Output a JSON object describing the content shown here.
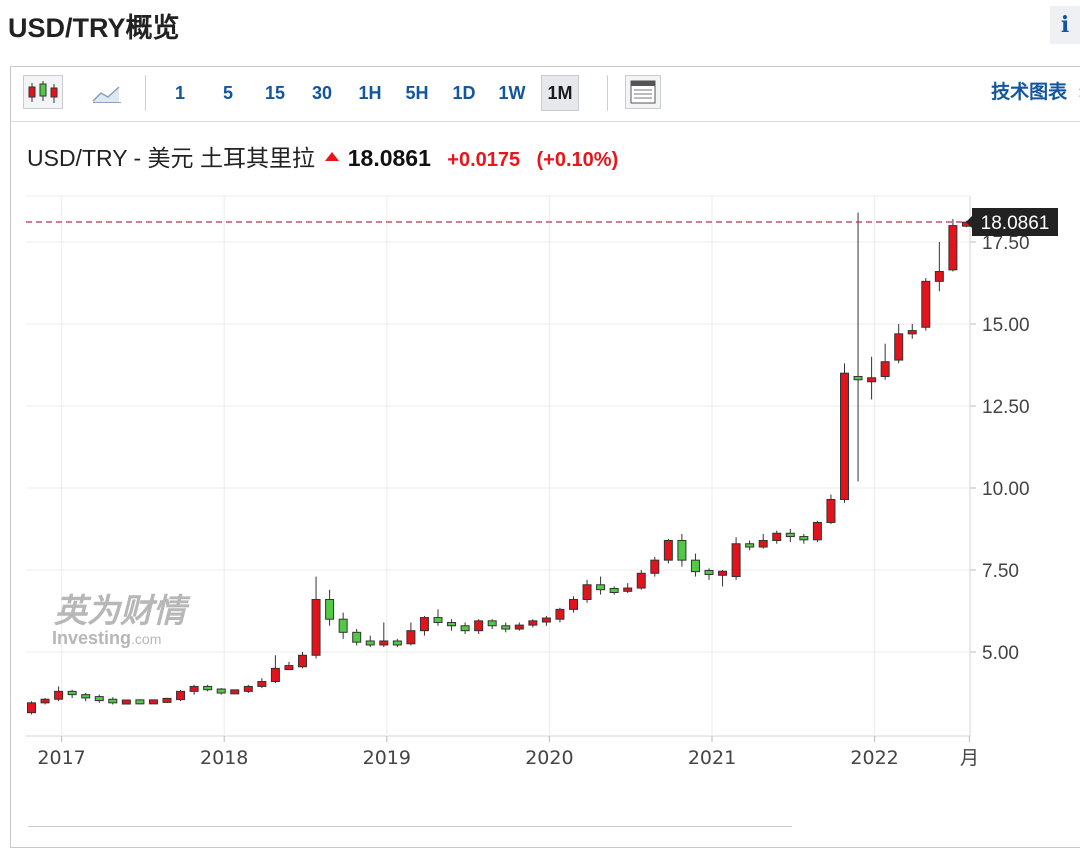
{
  "page": {
    "title": "USD/TRY概览",
    "info_icon": "info-icon",
    "info_label": "i"
  },
  "toolbar": {
    "chart_type_icons": [
      "candlestick-icon",
      "area-chart-icon"
    ],
    "timeframes": [
      "1",
      "5",
      "15",
      "30",
      "1H",
      "5H",
      "1D",
      "1W",
      "1M"
    ],
    "active_timeframe": "1M",
    "table_icon": "data-table-icon",
    "tech_chart_label": "技术图表",
    "tech_chart_arrow": "»"
  },
  "quote": {
    "name": "USD/TRY - 美元 土耳其里拉",
    "direction": "up",
    "price": "18.0861",
    "change": "+0.0175",
    "change_pct": "(+0.10%)",
    "up_color": "#e8151a"
  },
  "watermark": {
    "cn": "英为财情",
    "en": "Investing",
    "suffix": ".com"
  },
  "chart_data": {
    "type": "candlestick",
    "title": "USD/TRY - 美元 土耳其里拉",
    "interval": "1M",
    "xlabel": "",
    "ylabel": "",
    "ylim": [
      2.2,
      19.2
    ],
    "y_ticks": [
      {
        "value": 17.5,
        "label": "17.50"
      },
      {
        "value": 15,
        "label": "15.00"
      },
      {
        "value": 12.5,
        "label": "12.50"
      },
      {
        "value": 10,
        "label": "10.00"
      },
      {
        "value": 7.5,
        "label": "7.50"
      },
      {
        "value": 5,
        "label": "5.00"
      }
    ],
    "x_ticks": [
      {
        "index": 2,
        "label": "2017"
      },
      {
        "index": 14,
        "label": "2018"
      },
      {
        "index": 26,
        "label": "2019"
      },
      {
        "index": 38,
        "label": "2020"
      },
      {
        "index": 50,
        "label": "2021"
      },
      {
        "index": 62,
        "label": "2022"
      },
      {
        "index": 69,
        "label": "月"
      }
    ],
    "last_price": 18.0861,
    "last_price_label": "18.0861",
    "up_color": "#e3131b",
    "down_color": "#52c946",
    "candles": [
      [
        3.15,
        3.45,
        3.1,
        3.5
      ],
      [
        3.45,
        3.56,
        3.4,
        3.6
      ],
      [
        3.56,
        3.8,
        3.5,
        3.95
      ],
      [
        3.8,
        3.7,
        3.6,
        3.85
      ],
      [
        3.7,
        3.6,
        3.5,
        3.75
      ],
      [
        3.6,
        3.56,
        3.45,
        3.7
      ],
      [
        3.56,
        3.45,
        3.4,
        3.62
      ],
      [
        3.45,
        3.5,
        3.4,
        3.55
      ],
      [
        3.5,
        3.46,
        3.4,
        3.56
      ],
      [
        3.46,
        3.5,
        3.42,
        3.55
      ],
      [
        3.5,
        3.55,
        3.45,
        3.6
      ],
      [
        3.55,
        3.8,
        3.5,
        3.85
      ],
      [
        3.8,
        3.95,
        3.7,
        4.0
      ],
      [
        3.95,
        3.85,
        3.8,
        4.0
      ],
      [
        3.85,
        3.77,
        3.7,
        3.9
      ],
      [
        3.77,
        3.8,
        3.72,
        3.85
      ],
      [
        3.8,
        3.95,
        3.75,
        4.0
      ],
      [
        3.95,
        4.1,
        3.9,
        4.2
      ],
      [
        4.1,
        4.5,
        4.05,
        4.9
      ],
      [
        4.5,
        4.55,
        4.45,
        4.7
      ],
      [
        4.55,
        4.9,
        4.5,
        5.0
      ],
      [
        4.9,
        6.6,
        4.8,
        7.3
      ],
      [
        6.6,
        6.0,
        5.8,
        6.9
      ],
      [
        6.0,
        5.6,
        5.4,
        6.2
      ],
      [
        5.6,
        5.3,
        5.2,
        5.7
      ],
      [
        5.3,
        5.25,
        5.15,
        5.5
      ],
      [
        5.25,
        5.3,
        5.15,
        5.9
      ],
      [
        5.3,
        5.25,
        5.15,
        5.4
      ],
      [
        5.25,
        5.65,
        5.2,
        5.9
      ],
      [
        5.65,
        6.05,
        5.5,
        6.1
      ],
      [
        6.05,
        5.9,
        5.8,
        6.3
      ],
      [
        5.9,
        5.8,
        5.65,
        6.0
      ],
      [
        5.8,
        5.65,
        5.55,
        5.9
      ],
      [
        5.65,
        5.95,
        5.55,
        6.0
      ],
      [
        5.95,
        5.8,
        5.7,
        6.0
      ],
      [
        5.8,
        5.7,
        5.6,
        5.9
      ],
      [
        5.7,
        5.82,
        5.65,
        5.9
      ],
      [
        5.82,
        5.95,
        5.75,
        6.0
      ],
      [
        5.95,
        6.0,
        5.8,
        6.1
      ],
      [
        6.0,
        6.3,
        5.9,
        6.35
      ],
      [
        6.3,
        6.6,
        6.2,
        6.7
      ],
      [
        6.6,
        7.05,
        6.5,
        7.2
      ],
      [
        7.05,
        6.9,
        6.75,
        7.3
      ],
      [
        6.9,
        6.85,
        6.75,
        7.0
      ],
      [
        6.85,
        6.95,
        6.8,
        7.1
      ],
      [
        6.95,
        7.4,
        6.9,
        7.5
      ],
      [
        7.4,
        7.8,
        7.3,
        7.9
      ],
      [
        7.8,
        8.4,
        7.7,
        8.45
      ],
      [
        8.4,
        7.8,
        7.6,
        8.6
      ],
      [
        7.8,
        7.45,
        7.3,
        8.0
      ],
      [
        7.45,
        7.4,
        7.2,
        7.55
      ],
      [
        7.4,
        7.4,
        7.0,
        7.5
      ],
      [
        7.3,
        8.3,
        7.2,
        8.5
      ],
      [
        8.3,
        8.2,
        8.1,
        8.4
      ],
      [
        8.2,
        8.4,
        8.15,
        8.6
      ],
      [
        8.4,
        8.62,
        8.3,
        8.7
      ],
      [
        8.62,
        8.52,
        8.35,
        8.75
      ],
      [
        8.52,
        8.42,
        8.3,
        8.6
      ],
      [
        8.42,
        8.95,
        8.35,
        9.0
      ],
      [
        8.95,
        9.65,
        8.9,
        9.8
      ],
      [
        9.65,
        13.5,
        9.55,
        13.8
      ],
      [
        13.4,
        13.3,
        10.2,
        18.4
      ],
      [
        13.3,
        13.3,
        12.7,
        14.0
      ],
      [
        13.4,
        13.85,
        13.3,
        14.4
      ],
      [
        13.9,
        14.7,
        13.8,
        15.0
      ],
      [
        14.7,
        14.8,
        14.55,
        15.0
      ],
      [
        14.9,
        16.3,
        14.8,
        16.4
      ],
      [
        16.3,
        16.6,
        16.0,
        17.5
      ],
      [
        16.65,
        18.0,
        16.6,
        18.2
      ],
      [
        18.0,
        18.0861,
        17.95,
        18.15
      ]
    ]
  }
}
